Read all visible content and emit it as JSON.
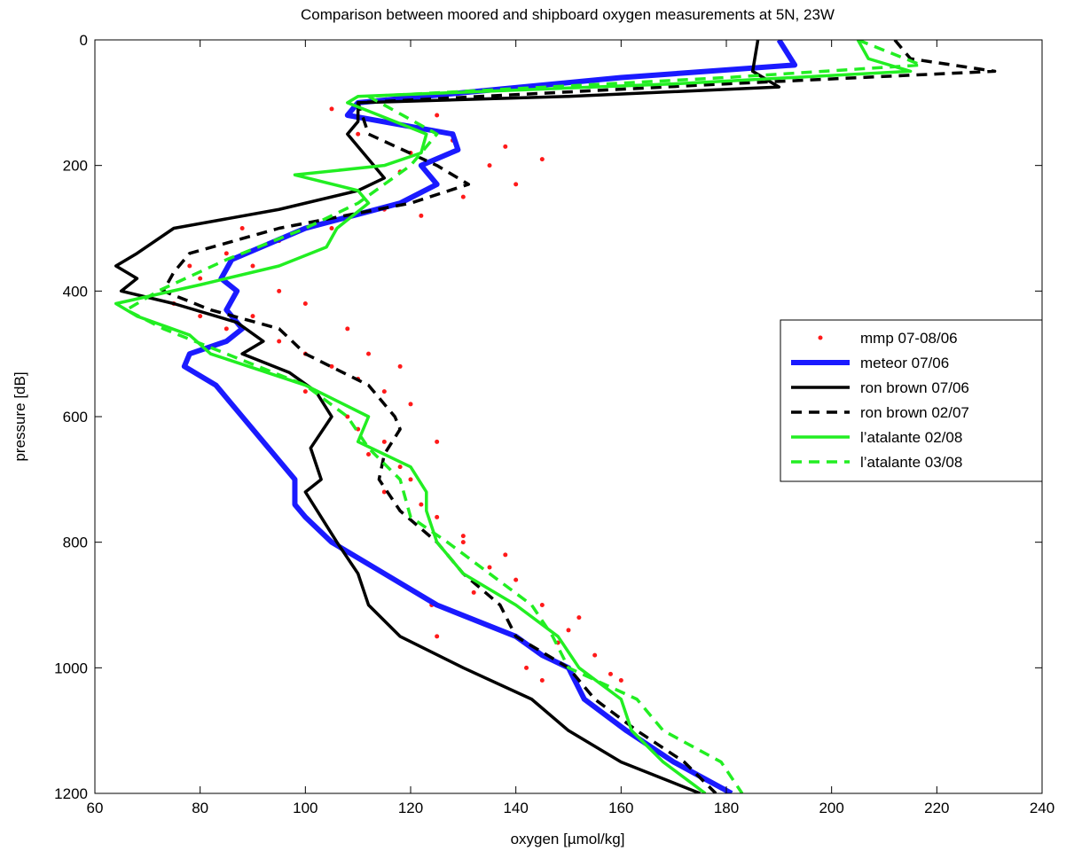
{
  "chart_data": {
    "type": "line",
    "title": "Comparison between moored and shipboard oxygen measurements at 5N, 23W",
    "x_label": "oxygen [µmol/kg]",
    "y_label": "pressure [dB]",
    "xlim": [
      60,
      240
    ],
    "xticks": [
      60,
      80,
      100,
      120,
      140,
      160,
      180,
      200,
      220,
      240
    ],
    "ylim": [
      1200,
      0
    ],
    "yticks": [
      0,
      200,
      400,
      600,
      800,
      1000,
      1200
    ],
    "legend": "center right",
    "series": [
      {
        "name": "mmp 07-08/06",
        "color": "#ff1a1a",
        "style": "dots",
        "x": [
          105,
          115,
          122,
          128,
          135,
          140,
          130,
          120,
          110,
          125,
          118,
          138,
          145,
          105,
          95,
          85,
          78,
          80,
          90,
          75,
          80,
          85,
          95,
          100,
          105,
          110,
          115,
          120,
          112,
          118,
          108,
          115,
          112,
          120,
          115,
          125,
          118,
          130,
          135,
          140,
          132,
          145,
          150,
          155,
          158,
          148,
          145,
          142,
          125,
          124,
          100,
          90,
          95,
          88,
          115,
          122,
          108,
          110,
          122,
          138,
          152,
          160,
          130,
          100,
          125
        ],
        "y": [
          110,
          130,
          140,
          160,
          200,
          230,
          250,
          180,
          150,
          120,
          210,
          170,
          190,
          300,
          320,
          340,
          360,
          380,
          360,
          420,
          440,
          460,
          480,
          500,
          520,
          540,
          560,
          580,
          500,
          520,
          460,
          640,
          660,
          700,
          720,
          760,
          680,
          800,
          840,
          860,
          880,
          900,
          940,
          980,
          1010,
          960,
          1020,
          1000,
          950,
          900,
          420,
          440,
          400,
          300,
          270,
          280,
          600,
          620,
          740,
          820,
          920,
          1020,
          790,
          560,
          640
        ]
      },
      {
        "name": "meteor 07/06",
        "color": "#1a1aff",
        "style": "thick",
        "x": [
          190,
          193,
          160,
          110,
          108,
          128,
          129,
          122,
          125,
          118,
          100,
          86,
          84,
          87,
          85,
          88,
          85,
          78,
          77,
          83,
          88,
          93,
          98,
          98,
          100,
          105,
          115,
          125,
          140,
          145,
          150,
          153,
          161,
          170,
          181
        ],
        "y": [
          0,
          40,
          60,
          100,
          120,
          150,
          175,
          200,
          230,
          260,
          300,
          350,
          380,
          400,
          430,
          460,
          480,
          500,
          520,
          550,
          600,
          650,
          700,
          740,
          760,
          800,
          850,
          900,
          950,
          980,
          1000,
          1050,
          1100,
          1150,
          1200
        ]
      },
      {
        "name": "ron brown 07/06",
        "color": "#000000",
        "style": "solid",
        "x": [
          186,
          185,
          190,
          150,
          110,
          110,
          108,
          113,
          115,
          110,
          95,
          75,
          68,
          64,
          68,
          65,
          75,
          87,
          92,
          88,
          97,
          102,
          105,
          101,
          103,
          100,
          103,
          106,
          110,
          112,
          118,
          130,
          143,
          150,
          160,
          175
        ],
        "y": [
          0,
          50,
          75,
          90,
          100,
          130,
          150,
          200,
          220,
          240,
          270,
          300,
          340,
          360,
          380,
          400,
          420,
          450,
          480,
          500,
          530,
          560,
          600,
          650,
          700,
          720,
          760,
          800,
          850,
          900,
          950,
          1000,
          1050,
          1100,
          1150,
          1200
        ]
      },
      {
        "name": "ron brown 02/07",
        "color": "#000000",
        "style": "dashed",
        "x": [
          212,
          215,
          231,
          180,
          110,
          112,
          125,
          131,
          120,
          95,
          78,
          75,
          73,
          82,
          95,
          100,
          112,
          117,
          118,
          115,
          114,
          118,
          125,
          130,
          137,
          140,
          150,
          155,
          163,
          172,
          178
        ],
        "y": [
          0,
          30,
          50,
          70,
          100,
          150,
          200,
          230,
          260,
          300,
          340,
          370,
          400,
          430,
          460,
          500,
          550,
          600,
          620,
          660,
          700,
          750,
          800,
          850,
          900,
          950,
          1000,
          1050,
          1100,
          1150,
          1200
        ]
      },
      {
        "name": "l’atalante 02/08",
        "color": "#22ee22",
        "style": "solid",
        "x": [
          205,
          207,
          215,
          170,
          110,
          108,
          123,
          122,
          115,
          98,
          110,
          112,
          106,
          104,
          95,
          80,
          64,
          68,
          78,
          82,
          100,
          112,
          110,
          120,
          123,
          123,
          125,
          130,
          140,
          148,
          152,
          160,
          162,
          168,
          176
        ],
        "y": [
          0,
          30,
          50,
          70,
          90,
          100,
          150,
          180,
          200,
          215,
          240,
          260,
          300,
          330,
          360,
          390,
          420,
          440,
          470,
          500,
          550,
          600,
          640,
          680,
          720,
          750,
          800,
          850,
          900,
          950,
          1000,
          1050,
          1100,
          1150,
          1200
        ]
      },
      {
        "name": "l’atalante 03/08",
        "color": "#22ee22",
        "style": "dashed",
        "x": [
          205,
          217,
          180,
          112,
          125,
          120,
          110,
          100,
          85,
          72,
          66,
          73,
          85,
          100,
          108,
          112,
          118,
          120,
          127,
          135,
          143,
          147,
          150,
          163,
          168,
          179,
          183
        ],
        "y": [
          0,
          40,
          60,
          90,
          150,
          200,
          260,
          300,
          350,
          400,
          430,
          460,
          500,
          550,
          600,
          650,
          700,
          760,
          800,
          850,
          900,
          950,
          1000,
          1050,
          1100,
          1150,
          1200
        ]
      }
    ]
  }
}
